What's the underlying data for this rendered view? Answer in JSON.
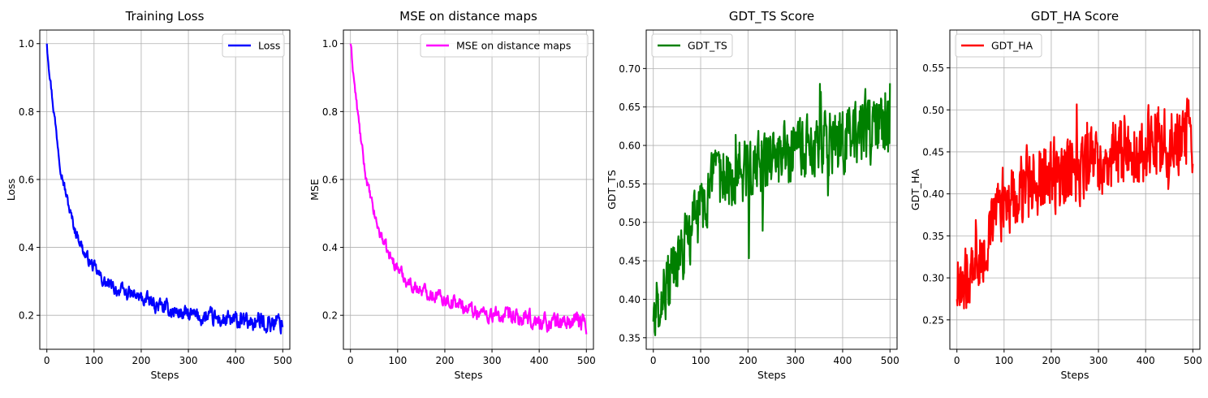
{
  "chart_data": [
    {
      "type": "line",
      "title": "Training Loss",
      "xlabel": "Steps",
      "ylabel": "Loss",
      "xlim": [
        -15,
        515
      ],
      "ylim": [
        0.1,
        1.04
      ],
      "xticks": [
        0,
        100,
        200,
        300,
        400,
        500
      ],
      "yticks": [
        0.2,
        0.4,
        0.6,
        0.8,
        1.0
      ],
      "ytick_labels": [
        "0.2",
        "0.4",
        "0.6",
        "0.8",
        "1.0"
      ],
      "grid": true,
      "legend_position": "upper right",
      "series": [
        {
          "name": "Loss",
          "color": "#0000ff",
          "kind": "decay",
          "x": [
            0,
            10,
            20,
            30,
            40,
            50,
            60,
            70,
            80,
            90,
            100,
            120,
            140,
            160,
            180,
            200,
            250,
            300,
            350,
            400,
            450,
            500
          ],
          "y": [
            1.0,
            0.86,
            0.74,
            0.63,
            0.56,
            0.5,
            0.45,
            0.42,
            0.38,
            0.36,
            0.34,
            0.3,
            0.28,
            0.27,
            0.26,
            0.25,
            0.22,
            0.2,
            0.19,
            0.18,
            0.18,
            0.18
          ],
          "noise": 0.02
        }
      ]
    },
    {
      "type": "line",
      "title": "MSE on distance maps",
      "xlabel": "Steps",
      "ylabel": "MSE",
      "xlim": [
        -15,
        515
      ],
      "ylim": [
        0.1,
        1.04
      ],
      "xticks": [
        0,
        100,
        200,
        300,
        400,
        500
      ],
      "yticks": [
        0.2,
        0.4,
        0.6,
        0.8,
        1.0
      ],
      "ytick_labels": [
        "0.2",
        "0.4",
        "0.6",
        "0.8",
        "1.0"
      ],
      "grid": true,
      "legend_position": "upper right",
      "series": [
        {
          "name": "MSE on distance maps",
          "color": "#ff00ff",
          "kind": "decay",
          "x": [
            0,
            10,
            20,
            30,
            40,
            50,
            60,
            70,
            80,
            90,
            100,
            120,
            140,
            160,
            180,
            200,
            250,
            300,
            350,
            400,
            450,
            500
          ],
          "y": [
            1.0,
            0.86,
            0.74,
            0.63,
            0.56,
            0.5,
            0.45,
            0.42,
            0.38,
            0.36,
            0.34,
            0.3,
            0.28,
            0.27,
            0.26,
            0.25,
            0.22,
            0.2,
            0.19,
            0.18,
            0.18,
            0.18
          ],
          "noise": 0.02
        }
      ]
    },
    {
      "type": "line",
      "title": "GDT_TS Score",
      "xlabel": "Steps",
      "ylabel": "GDT_TS",
      "xlim": [
        -15,
        515
      ],
      "ylim": [
        0.335,
        0.75
      ],
      "xticks": [
        0,
        100,
        200,
        300,
        400,
        500
      ],
      "yticks": [
        0.35,
        0.4,
        0.45,
        0.5,
        0.55,
        0.6,
        0.65,
        0.7
      ],
      "ytick_labels": [
        "0.35",
        "0.40",
        "0.45",
        "0.50",
        "0.55",
        "0.60",
        "0.65",
        "0.70"
      ],
      "grid": true,
      "legend_position": "upper left",
      "series": [
        {
          "name": "GDT_TS",
          "color": "#008000",
          "kind": "rise",
          "x": [
            0,
            20,
            40,
            60,
            80,
            100,
            120,
            150,
            200,
            250,
            300,
            350,
            400,
            450,
            500
          ],
          "y": [
            0.38,
            0.41,
            0.43,
            0.46,
            0.49,
            0.52,
            0.54,
            0.56,
            0.57,
            0.58,
            0.59,
            0.6,
            0.61,
            0.62,
            0.62
          ],
          "noise": 0.04
        }
      ]
    },
    {
      "type": "line",
      "title": "GDT_HA Score",
      "xlabel": "Steps",
      "ylabel": "GDT_HA",
      "xlim": [
        -15,
        515
      ],
      "ylim": [
        0.215,
        0.595
      ],
      "xticks": [
        0,
        100,
        200,
        300,
        400,
        500
      ],
      "yticks": [
        0.25,
        0.3,
        0.35,
        0.4,
        0.45,
        0.5,
        0.55
      ],
      "ytick_labels": [
        "0.25",
        "0.30",
        "0.35",
        "0.40",
        "0.45",
        "0.50",
        "0.55"
      ],
      "grid": true,
      "legend_position": "upper left",
      "series": [
        {
          "name": "GDT_HA",
          "color": "#ff0000",
          "kind": "rise",
          "x": [
            0,
            20,
            40,
            60,
            80,
            100,
            120,
            150,
            200,
            250,
            300,
            350,
            400,
            450,
            500
          ],
          "y": [
            0.28,
            0.3,
            0.32,
            0.34,
            0.37,
            0.39,
            0.4,
            0.41,
            0.42,
            0.43,
            0.44,
            0.45,
            0.46,
            0.47,
            0.47
          ],
          "noise": 0.04
        }
      ]
    }
  ]
}
